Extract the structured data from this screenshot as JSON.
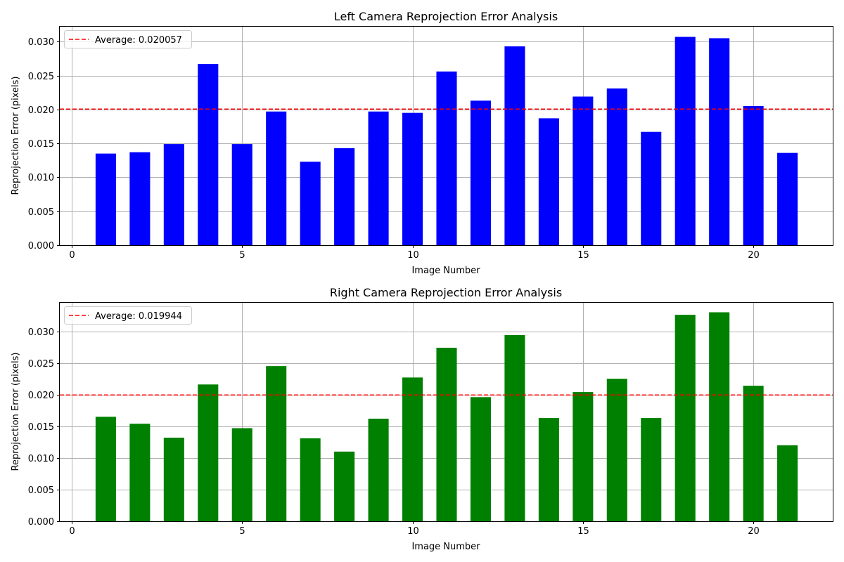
{
  "chart_data": [
    {
      "type": "bar",
      "title": "Left Camera Reprojection Error Analysis",
      "xlabel": "Image Number",
      "ylabel": "Reprojection Error (pixels)",
      "x": [
        1,
        2,
        3,
        4,
        5,
        6,
        7,
        8,
        9,
        10,
        11,
        12,
        13,
        14,
        15,
        16,
        17,
        18,
        19,
        20,
        21
      ],
      "values": [
        0.0135,
        0.0137,
        0.0149,
        0.0267,
        0.0149,
        0.0197,
        0.0123,
        0.0143,
        0.0197,
        0.0195,
        0.0256,
        0.0213,
        0.0293,
        0.0187,
        0.0219,
        0.0231,
        0.0167,
        0.0307,
        0.0305,
        0.0205,
        0.0136
      ],
      "bar_color": "#0000ff",
      "average": 0.020057,
      "average_label": "Average: 0.020057",
      "average_color": "#ff0000",
      "xlim": [
        -0.35,
        22.35
      ],
      "ylim": [
        0,
        0.0322
      ],
      "xticks": [
        0,
        5,
        10,
        15,
        20
      ],
      "xtick_labels": [
        "0",
        "5",
        "10",
        "15",
        "20"
      ],
      "yticks": [
        0,
        0.005,
        0.01,
        0.015,
        0.02,
        0.025,
        0.03
      ],
      "ytick_labels": [
        "0.000",
        "0.005",
        "0.010",
        "0.015",
        "0.020",
        "0.025",
        "0.030"
      ],
      "grid": true,
      "legend_position": "top-left"
    },
    {
      "type": "bar",
      "title": "Right Camera Reprojection Error Analysis",
      "xlabel": "Image Number",
      "ylabel": "Reprojection Error (pixels)",
      "x": [
        1,
        2,
        3,
        4,
        5,
        6,
        7,
        8,
        9,
        10,
        11,
        12,
        13,
        14,
        15,
        16,
        17,
        18,
        19,
        20,
        21
      ],
      "values": [
        0.0165,
        0.0154,
        0.0132,
        0.0216,
        0.0147,
        0.0245,
        0.0131,
        0.011,
        0.0162,
        0.0227,
        0.0274,
        0.0196,
        0.0294,
        0.0163,
        0.0204,
        0.0225,
        0.0163,
        0.0326,
        0.033,
        0.0214,
        0.012
      ],
      "bar_color": "#008000",
      "average": 0.019944,
      "average_label": "Average: 0.019944",
      "average_color": "#ff0000",
      "xlim": [
        -0.35,
        22.35
      ],
      "ylim": [
        0,
        0.0345
      ],
      "xticks": [
        0,
        5,
        10,
        15,
        20
      ],
      "xtick_labels": [
        "0",
        "5",
        "10",
        "15",
        "20"
      ],
      "yticks": [
        0,
        0.005,
        0.01,
        0.015,
        0.02,
        0.025,
        0.03
      ],
      "ytick_labels": [
        "0.000",
        "0.005",
        "0.010",
        "0.015",
        "0.020",
        "0.025",
        "0.030"
      ],
      "grid": true,
      "legend_position": "top-left"
    }
  ]
}
